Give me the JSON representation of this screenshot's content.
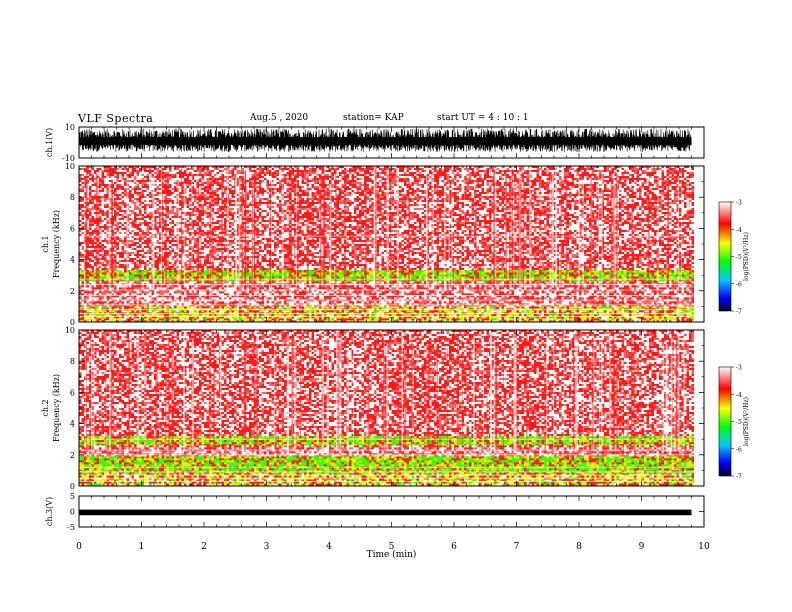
{
  "header": {
    "title": "VLF Spectra",
    "date": "Aug.5  , 2020",
    "station": "station= KAP",
    "start": "start  UT =   4 : 10 : 1"
  },
  "chart_data": [
    {
      "type": "line",
      "panel": "ch1-waveform",
      "ylabel": "ch.1(V)",
      "ylim": [
        -10,
        10
      ],
      "yticks": [
        "10",
        "-10"
      ],
      "xlim": [
        0,
        10
      ],
      "description_of_values": "dense noise filling roughly -6 to +9 V across 0–9.8 min"
    },
    {
      "type": "heatmap",
      "panel": "ch1-spectrogram",
      "ylabel": "ch.1\nFrequency (kHz)",
      "ylabel_line1": "ch.1",
      "ylabel_line2": "Frequency (kHz)",
      "ylim": [
        0,
        10
      ],
      "yticks": [
        "0",
        "2",
        "4",
        "6",
        "8",
        "10"
      ],
      "xlim": [
        0,
        9.8
      ],
      "colorbar": {
        "label": "log(PSD)(V²/Hz)",
        "range": [
          -7,
          -3
        ],
        "ticks": [
          "-3",
          "-4",
          "-5",
          "-6",
          "-7"
        ]
      },
      "bands": [
        {
          "from_khz": 0,
          "to_khz": 1.0,
          "level": -4.3
        },
        {
          "from_khz": 1.0,
          "to_khz": 2.6,
          "level": -4.2
        },
        {
          "from_khz": 2.6,
          "to_khz": 3.3,
          "level": -4.6
        },
        {
          "from_khz": 3.3,
          "to_khz": 10,
          "level": -3.7
        }
      ]
    },
    {
      "type": "heatmap",
      "panel": "ch2-spectrogram",
      "ylabel_line1": "ch.2",
      "ylabel_line2": "Frequency (kHz)",
      "ylim": [
        0,
        10
      ],
      "yticks": [
        "0",
        "2",
        "4",
        "6",
        "8",
        "10"
      ],
      "xlim": [
        0,
        9.8
      ],
      "colorbar": {
        "label": "log(PSD)(V²/Hz)",
        "range": [
          -7,
          -3
        ],
        "ticks": [
          "-3",
          "-4",
          "-5",
          "-6",
          "-7"
        ]
      },
      "bands": [
        {
          "from_khz": 0,
          "to_khz": 0.8,
          "level": -4.3
        },
        {
          "from_khz": 0.8,
          "to_khz": 1.9,
          "level": -4.6
        },
        {
          "from_khz": 1.9,
          "to_khz": 2.6,
          "level": -4.2
        },
        {
          "from_khz": 2.6,
          "to_khz": 3.2,
          "level": -4.6
        },
        {
          "from_khz": 3.2,
          "to_khz": 10,
          "level": -3.7
        }
      ]
    },
    {
      "type": "line",
      "panel": "ch3-waveform",
      "ylabel": "ch.3(V)",
      "ylim": [
        -5,
        5
      ],
      "yticks": [
        "5",
        "0",
        "-5"
      ],
      "xlim": [
        0,
        10
      ],
      "approx_band_v": [
        -1.2,
        0.6
      ]
    }
  ],
  "xaxis": {
    "label": "Time (min)",
    "ticks": [
      "0",
      "1",
      "2",
      "3",
      "4",
      "5",
      "6",
      "7",
      "8",
      "9",
      "10"
    ],
    "range": [
      0,
      10
    ],
    "data_end_min": 9.8
  },
  "colors": {
    "red": "#ff1a1a",
    "pink": "#ff9a9a",
    "yellow": "#f0f000",
    "green": "#33ff00",
    "cyan": "#00e0ff",
    "blue": "#0040ff",
    "navy": "#000033"
  }
}
